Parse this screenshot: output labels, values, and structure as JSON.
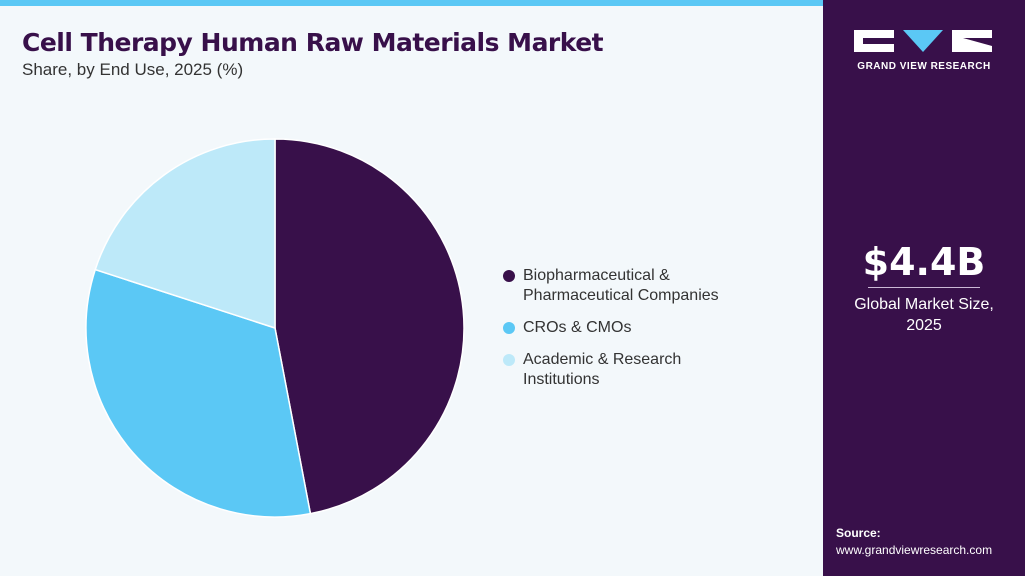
{
  "chart_data": {
    "type": "pie",
    "title": "Cell Therapy Human Raw Materials Market",
    "subtitle": "Share, by End Use, 2025 (%)",
    "categories": [
      "Biopharmaceutical & Pharmaceutical Companies",
      "CROs & CMOs",
      "Academic & Research Institutions"
    ],
    "values": [
      47,
      33,
      20
    ],
    "colors": [
      "#38104a",
      "#5bc8f5",
      "#bde9f9"
    ]
  },
  "brand": "GRAND VIEW RESEARCH",
  "market_size": {
    "value": "$4.4B",
    "label": "Global Market Size, 2025"
  },
  "source": {
    "label": "Source:",
    "url": "www.grandviewresearch.com"
  }
}
